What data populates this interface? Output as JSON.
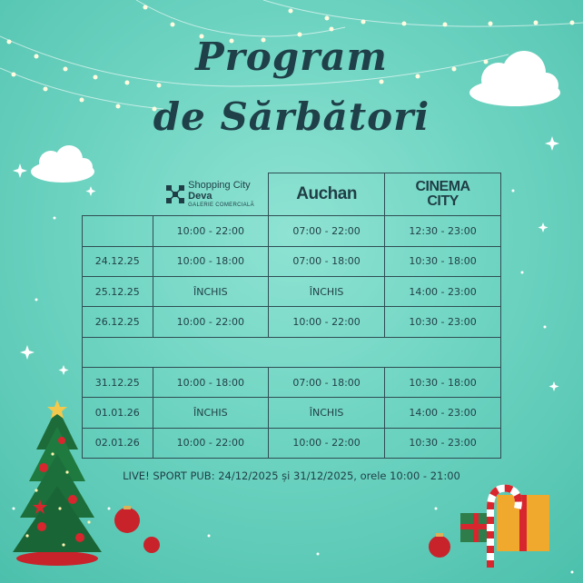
{
  "title_line1": "Program",
  "title_line2": "de Sărbători",
  "brands": {
    "shopping_city_name": "Shopping City",
    "shopping_city_city": "Deva",
    "shopping_city_sub": "GALERIE COMERCIALĂ",
    "auchan": "Auchan",
    "cinema_line1": "CINEMA",
    "cinema_line2": "CITY"
  },
  "rows": [
    {
      "date": "",
      "sc": "10:00 - 22:00",
      "auchan": "07:00 - 22:00",
      "cinema": "12:30 - 23:00"
    },
    {
      "date": "24.12.25",
      "sc": "10:00 - 18:00",
      "auchan": "07:00 - 18:00",
      "cinema": "10:30 - 18:00"
    },
    {
      "date": "25.12.25",
      "sc": "ÎNCHIS",
      "auchan": "ÎNCHIS",
      "cinema": "14:00 - 23:00"
    },
    {
      "date": "26.12.25",
      "sc": "10:00 - 22:00",
      "auchan": "10:00 - 22:00",
      "cinema": "10:30 - 23:00"
    },
    {
      "date": "31.12.25",
      "sc": "10:00 - 18:00",
      "auchan": "07:00 - 18:00",
      "cinema": "10:30 - 18:00"
    },
    {
      "date": "01.01.26",
      "sc": "ÎNCHIS",
      "auchan": "ÎNCHIS",
      "cinema": "14:00 - 23:00"
    },
    {
      "date": "02.01.26",
      "sc": "10:00 - 22:00",
      "auchan": "10:00 - 22:00",
      "cinema": "10:30 - 23:00"
    }
  ],
  "footer": "LIVE! SPORT PUB: 24/12/2025 și 31/12/2025, orele 10:00 - 21:00",
  "colors": {
    "background": "#6fd4c2",
    "text": "#1f3e46",
    "accent_red": "#d8262e"
  }
}
